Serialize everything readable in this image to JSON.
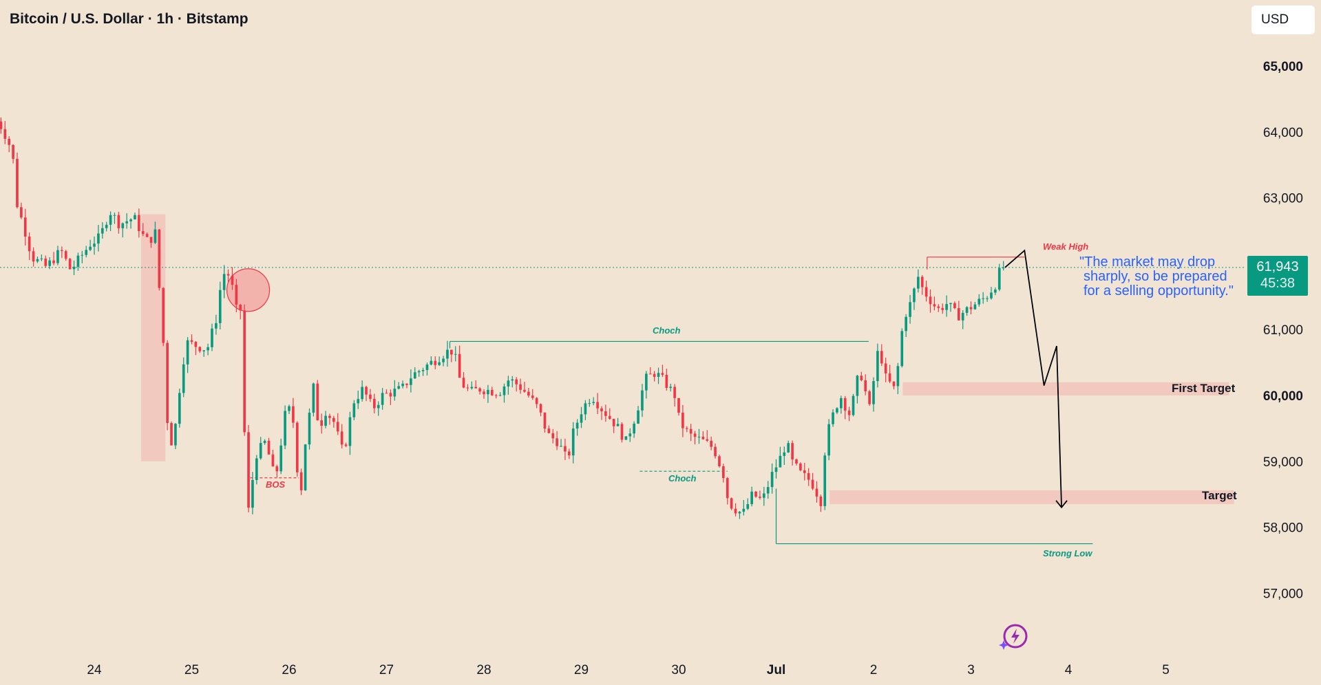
{
  "header": {
    "title": "Bitcoin / U.S. Dollar · 1h · Bitstamp",
    "currency_button": "USD"
  },
  "price_badge": {
    "price": "61,943",
    "countdown": "45:38",
    "color": "#089981"
  },
  "callout": {
    "lines": [
      "\"The market may drop",
      "sharply, so be prepared",
      "for a selling opportunity.\""
    ],
    "color": "#2962ff"
  },
  "labels": {
    "weak_high": "Weak High",
    "strong_low": "Strong Low",
    "bos": "BOS",
    "choch_upper": "Choch",
    "choch_lower": "Choch",
    "first_target": "First Target",
    "target": "Target"
  },
  "icons": {
    "assistant": "sparkle-bolt-icon"
  },
  "colors": {
    "background": "#f1e4d3",
    "up": "#089981",
    "down": "#f23645",
    "zone": "#f1c4bb"
  },
  "chart_data": {
    "type": "candlestick",
    "symbol": "BTCUSD",
    "interval": "1h",
    "exchange": "Bitstamp",
    "x_ticks": [
      {
        "label": "24",
        "day": 24
      },
      {
        "label": "25",
        "day": 25
      },
      {
        "label": "26",
        "day": 26
      },
      {
        "label": "27",
        "day": 27
      },
      {
        "label": "28",
        "day": 28
      },
      {
        "label": "29",
        "day": 29
      },
      {
        "label": "30",
        "day": 30
      },
      {
        "label": "Jul",
        "day": 31,
        "bold": true
      },
      {
        "label": "2",
        "day": 32
      },
      {
        "label": "3",
        "day": 33
      },
      {
        "label": "4",
        "day": 34
      },
      {
        "label": "5",
        "day": 35
      }
    ],
    "y_ticks": [
      {
        "value": 57000,
        "label": "57,000"
      },
      {
        "value": 58000,
        "label": "58,000"
      },
      {
        "value": 59000,
        "label": "59,000"
      },
      {
        "value": 60000,
        "label": "60,000",
        "bold": true
      },
      {
        "value": 61000,
        "label": "61,000"
      },
      {
        "value": 62000,
        "label": ""
      },
      {
        "value": 63000,
        "label": "63,000"
      },
      {
        "value": 64000,
        "label": "64,000"
      },
      {
        "value": 65000,
        "label": "65,000",
        "bold": true
      }
    ],
    "x_range_days": [
      23.0,
      36.3
    ],
    "y_range": [
      56200,
      65900
    ],
    "last_price": 61943,
    "price_path": [
      [
        23.0,
        64200
      ],
      [
        23.05,
        64150
      ],
      [
        23.1,
        64050
      ],
      [
        23.2,
        63700
      ],
      [
        23.25,
        62900
      ],
      [
        23.35,
        62400
      ],
      [
        23.4,
        62100
      ],
      [
        23.55,
        61950
      ],
      [
        23.7,
        62200
      ],
      [
        23.8,
        61900
      ],
      [
        24.0,
        62300
      ],
      [
        24.1,
        62400
      ],
      [
        24.2,
        62800
      ],
      [
        24.3,
        62600
      ],
      [
        24.45,
        62700
      ],
      [
        24.55,
        62400
      ],
      [
        24.62,
        62300
      ],
      [
        24.65,
        62800
      ],
      [
        24.7,
        61800
      ],
      [
        24.75,
        60800
      ],
      [
        24.78,
        59800
      ],
      [
        24.8,
        59500
      ],
      [
        24.85,
        59200
      ],
      [
        24.9,
        59900
      ],
      [
        24.95,
        60500
      ],
      [
        25.0,
        60800
      ],
      [
        25.1,
        60750
      ],
      [
        25.2,
        60700
      ],
      [
        25.3,
        61200
      ],
      [
        25.35,
        61800
      ],
      [
        25.4,
        61900
      ],
      [
        25.45,
        61700
      ],
      [
        25.5,
        61300
      ],
      [
        25.55,
        61300
      ],
      [
        25.6,
        58500
      ],
      [
        25.62,
        58200
      ],
      [
        25.7,
        59100
      ],
      [
        25.8,
        59300
      ],
      [
        25.9,
        58700
      ],
      [
        26.0,
        59700
      ],
      [
        26.05,
        59800
      ],
      [
        26.1,
        59500
      ],
      [
        26.15,
        58300
      ],
      [
        26.2,
        59200
      ],
      [
        26.3,
        60200
      ],
      [
        26.35,
        59400
      ],
      [
        26.4,
        59800
      ],
      [
        26.5,
        59600
      ],
      [
        26.6,
        59100
      ],
      [
        26.7,
        59900
      ],
      [
        26.8,
        60100
      ],
      [
        26.9,
        59800
      ],
      [
        27.0,
        60000
      ],
      [
        27.2,
        60100
      ],
      [
        27.3,
        60300
      ],
      [
        27.4,
        60400
      ],
      [
        27.5,
        60500
      ],
      [
        27.6,
        60600
      ],
      [
        27.7,
        60700
      ],
      [
        27.75,
        60550
      ],
      [
        27.8,
        60200
      ],
      [
        27.9,
        60050
      ],
      [
        28.0,
        60100
      ],
      [
        28.2,
        60050
      ],
      [
        28.3,
        60250
      ],
      [
        28.4,
        60150
      ],
      [
        28.5,
        60000
      ],
      [
        28.6,
        59800
      ],
      [
        28.7,
        59400
      ],
      [
        28.8,
        59300
      ],
      [
        28.9,
        59000
      ],
      [
        28.95,
        59400
      ],
      [
        29.05,
        59800
      ],
      [
        29.15,
        60000
      ],
      [
        29.25,
        59800
      ],
      [
        29.4,
        59550
      ],
      [
        29.5,
        59300
      ],
      [
        29.6,
        59700
      ],
      [
        29.7,
        60250
      ],
      [
        29.8,
        60350
      ],
      [
        29.9,
        60200
      ],
      [
        30.0,
        60000
      ],
      [
        30.05,
        59600
      ],
      [
        30.15,
        59400
      ],
      [
        30.3,
        59300
      ],
      [
        30.4,
        59200
      ],
      [
        30.5,
        58800
      ],
      [
        30.55,
        58400
      ],
      [
        30.6,
        58300
      ],
      [
        30.7,
        58200
      ],
      [
        30.8,
        58500
      ],
      [
        30.9,
        58400
      ],
      [
        31.0,
        58800
      ],
      [
        31.1,
        59100
      ],
      [
        31.15,
        59300
      ],
      [
        31.2,
        59000
      ],
      [
        31.3,
        58800
      ],
      [
        31.4,
        58700
      ],
      [
        31.5,
        58400
      ],
      [
        31.55,
        59300
      ],
      [
        31.6,
        59600
      ],
      [
        31.7,
        60000
      ],
      [
        31.8,
        59700
      ],
      [
        31.9,
        60400
      ],
      [
        32.0,
        59800
      ],
      [
        32.05,
        60300
      ],
      [
        32.1,
        60800
      ],
      [
        32.15,
        60300
      ],
      [
        32.25,
        60100
      ],
      [
        32.3,
        60500
      ],
      [
        32.35,
        61200
      ],
      [
        32.4,
        61300
      ],
      [
        32.5,
        61800
      ],
      [
        32.55,
        61600
      ],
      [
        32.6,
        61500
      ],
      [
        32.7,
        61300
      ],
      [
        32.8,
        61400
      ],
      [
        32.9,
        61200
      ],
      [
        33.0,
        61300
      ],
      [
        33.1,
        61400
      ],
      [
        33.2,
        61500
      ],
      [
        33.3,
        61700
      ],
      [
        33.35,
        61943
      ]
    ],
    "projection": [
      [
        33.35,
        61943
      ],
      [
        33.55,
        62200
      ],
      [
        33.75,
        60150
      ],
      [
        33.88,
        60750
      ],
      [
        33.93,
        58300
      ]
    ],
    "zones": [
      {
        "name": "supply-zone-left",
        "x": [
          24.48,
          24.73
        ],
        "y": [
          59000,
          62750
        ]
      },
      {
        "name": "first-target-zone",
        "x": [
          32.3,
          35.65
        ],
        "y": [
          60000,
          60200
        ]
      },
      {
        "name": "target-zone",
        "x": [
          31.55,
          35.7
        ],
        "y": [
          58350,
          58560
        ]
      }
    ],
    "levels": [
      {
        "name": "weak-high",
        "x": [
          32.55,
          33.55
        ],
        "y": 62100
      },
      {
        "name": "choch-upper",
        "x": [
          27.65,
          31.95
        ],
        "y": 60820
      },
      {
        "name": "choch-lower",
        "x": [
          29.6,
          30.5
        ],
        "y": 58850
      },
      {
        "name": "bos",
        "x": [
          25.6,
          26.1
        ],
        "y": 58750
      },
      {
        "name": "strong-low",
        "x": [
          31.0,
          34.25
        ],
        "y": 57750
      }
    ]
  }
}
